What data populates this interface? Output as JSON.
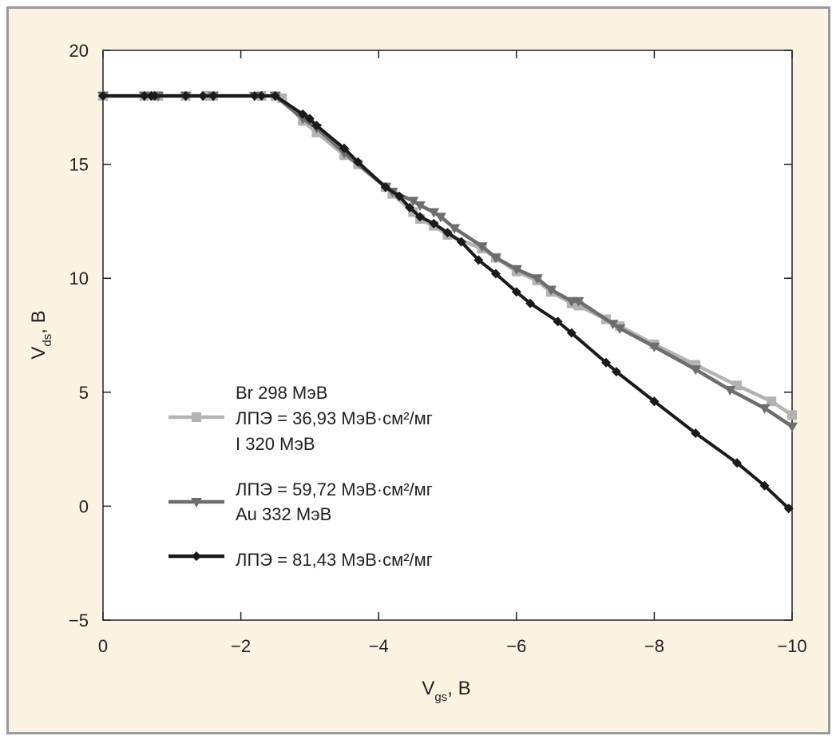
{
  "chart_data": {
    "type": "line",
    "xlabel": {
      "main": "V",
      "sub": "gs",
      "unit": ", В"
    },
    "ylabel": {
      "main": "V",
      "sub": "ds",
      "unit": ", В"
    },
    "xlim": [
      0,
      -10
    ],
    "ylim": [
      -5,
      20
    ],
    "xticks": [
      0,
      -2,
      -4,
      -6,
      -8,
      -10
    ],
    "xtick_labels": [
      "0",
      "−2",
      "−4",
      "−6",
      "−8",
      "−10"
    ],
    "yticks": [
      -5,
      0,
      5,
      10,
      15,
      20
    ],
    "ytick_labels": [
      "−5",
      "0",
      "5",
      "10",
      "15",
      "20"
    ],
    "grid": false,
    "legend_position": "center-left",
    "legend_text": [
      "Br 298 МэВ",
      "ЛПЭ = 36,93 МэВ·см²/мг",
      "I 320 МэВ",
      "ЛПЭ = 59,72 МэВ·см²/мг",
      "Au 332 МэВ",
      "ЛПЭ = 81,43 МэВ·см²/мг"
    ],
    "series": [
      {
        "marker": "square",
        "color": "#b3b3b3",
        "x": [
          0,
          -0.6,
          -0.75,
          -0.8,
          -1.2,
          -1.5,
          -1.6,
          -2.3,
          -2.5,
          -2.6,
          -2.9,
          -3.1,
          -3.5,
          -3.7,
          -4.1,
          -4.2,
          -4.5,
          -4.6,
          -4.8,
          -5.0,
          -5.5,
          -5.7,
          -6.0,
          -6.3,
          -6.5,
          -6.8,
          -6.9,
          -7.3,
          -7.5,
          -8.0,
          -8.6,
          -9.2,
          -9.7,
          -10.0
        ],
        "y": [
          18,
          18,
          18,
          18,
          18,
          18,
          18,
          18,
          18,
          17.9,
          16.9,
          16.4,
          15.4,
          15.0,
          14.0,
          13.7,
          12.9,
          12.6,
          12.3,
          11.9,
          11.3,
          10.9,
          10.3,
          9.9,
          9.4,
          8.9,
          8.8,
          8.2,
          7.9,
          7.1,
          6.2,
          5.3,
          4.6,
          4.0
        ]
      },
      {
        "marker": "triangle",
        "color": "#6d6d6d",
        "x": [
          0,
          -0.6,
          -0.8,
          -1.2,
          -1.6,
          -2.2,
          -2.5,
          -2.9,
          -3.1,
          -3.5,
          -4.1,
          -4.2,
          -4.5,
          -4.6,
          -4.8,
          -4.9,
          -5.1,
          -5.5,
          -5.7,
          -6.0,
          -6.3,
          -6.5,
          -6.8,
          -6.9,
          -7.4,
          -7.5,
          -8.0,
          -8.6,
          -9.1,
          -9.6,
          -10.0
        ],
        "y": [
          18,
          18,
          18,
          18,
          18,
          18,
          18,
          17.0,
          16.6,
          15.5,
          14.0,
          13.8,
          13.4,
          13.2,
          12.9,
          12.7,
          12.2,
          11.4,
          10.9,
          10.4,
          10.0,
          9.5,
          9.0,
          9.0,
          8.0,
          7.8,
          7.0,
          6.0,
          5.1,
          4.3,
          3.5
        ]
      },
      {
        "marker": "diamond",
        "color": "#1a1a1a",
        "x": [
          0,
          -0.6,
          -0.7,
          -0.75,
          -1.2,
          -1.45,
          -1.6,
          -2.2,
          -2.3,
          -2.5,
          -2.9,
          -3.0,
          -3.1,
          -3.5,
          -3.7,
          -4.1,
          -4.3,
          -4.45,
          -4.6,
          -4.8,
          -5.0,
          -5.2,
          -5.45,
          -5.7,
          -6.0,
          -6.2,
          -6.6,
          -6.8,
          -7.3,
          -7.45,
          -8.0,
          -8.6,
          -9.2,
          -9.6,
          -9.95
        ],
        "y": [
          18,
          18,
          18,
          18,
          18,
          18,
          18,
          18,
          18,
          18,
          17.2,
          17.0,
          16.7,
          15.7,
          15.1,
          14.0,
          13.6,
          13.1,
          12.7,
          12.4,
          12.0,
          11.6,
          10.8,
          10.2,
          9.4,
          8.9,
          8.1,
          7.6,
          6.3,
          5.9,
          4.6,
          3.2,
          1.9,
          0.9,
          -0.1
        ]
      }
    ]
  }
}
